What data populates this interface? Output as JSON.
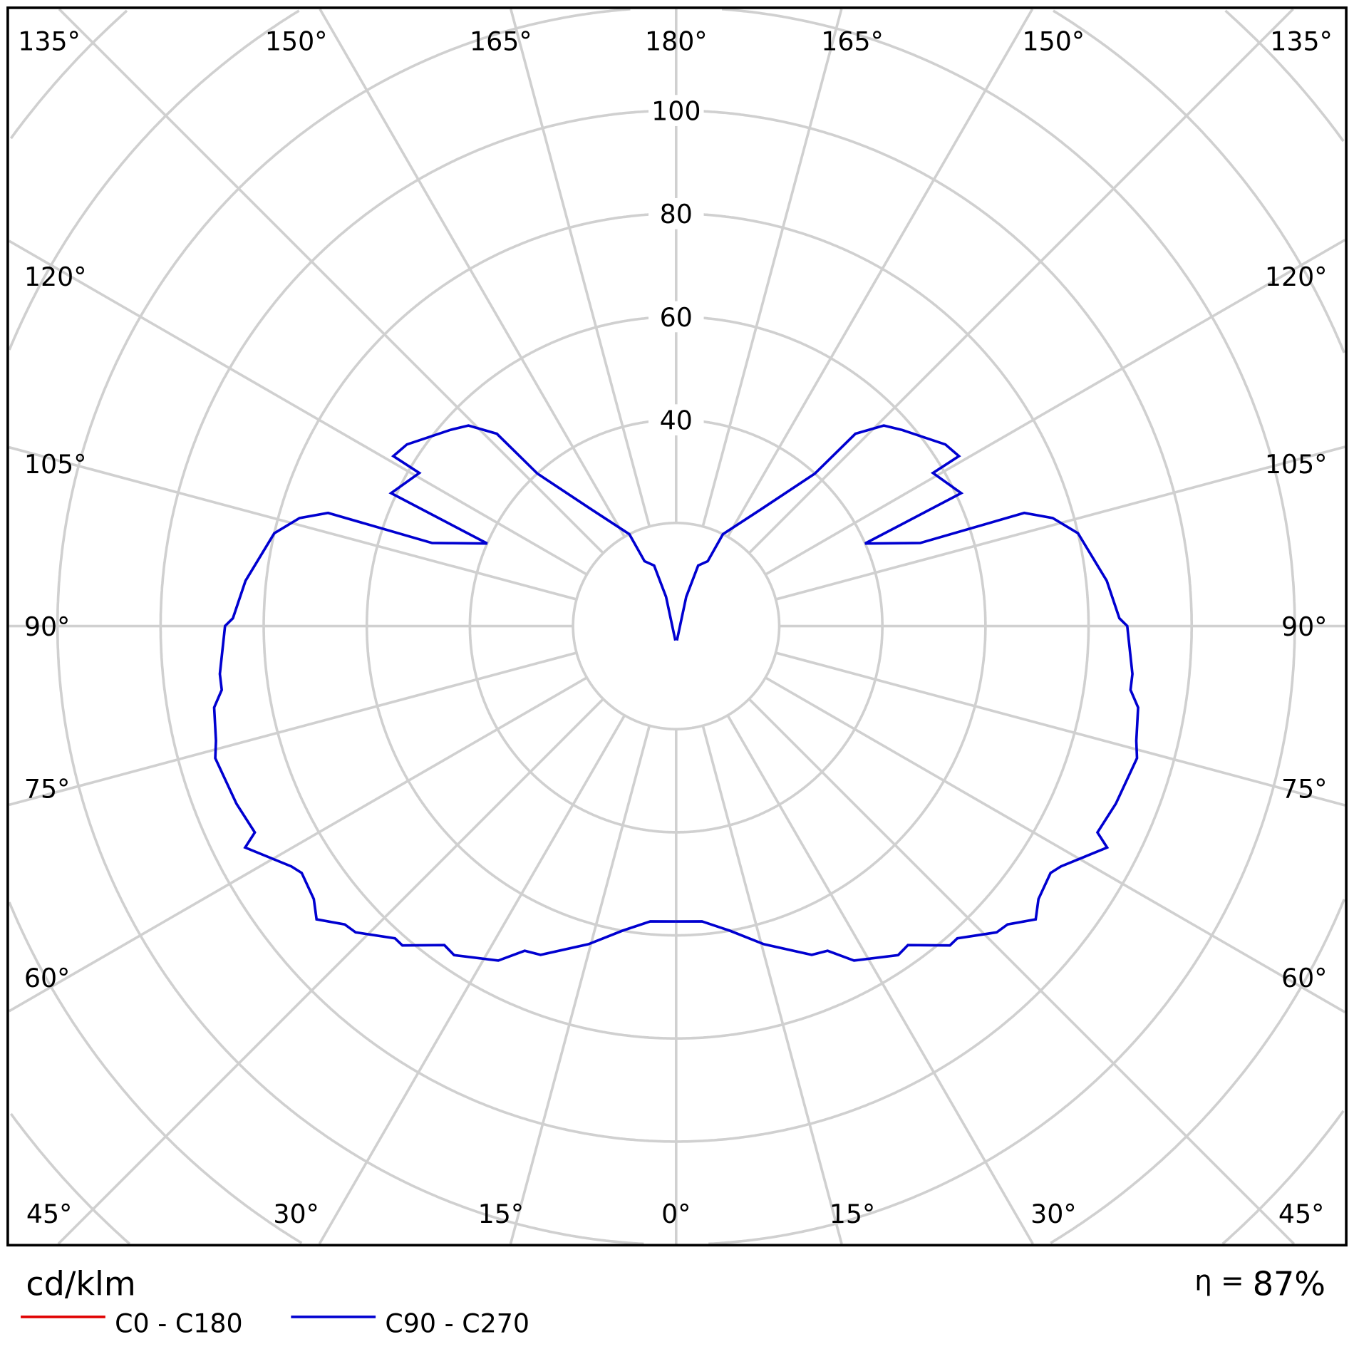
{
  "chart_data": {
    "type": "polar",
    "unit_label": "cd/klm",
    "efficiency_label": "η = 87%",
    "efficiency_symbol": "η =",
    "efficiency_value": "87%",
    "radial_ticks": [
      40,
      60,
      80,
      100
    ],
    "radial_tick_labels": [
      "40",
      "60",
      "80",
      "100"
    ],
    "grid_rings": [
      20,
      40,
      60,
      80,
      100,
      120,
      140,
      160
    ],
    "angle_step_deg": 15,
    "angle_labels_top": [
      "135°",
      "150°",
      "165°",
      "180°",
      "165°",
      "150°",
      "135°"
    ],
    "angle_labels_left": [
      "120°",
      "105°",
      "90°",
      "75°",
      "60°"
    ],
    "angle_labels_right": [
      "120°",
      "105°",
      "90°",
      "75°",
      "60°"
    ],
    "angle_labels_bottom": [
      "45°",
      "30°",
      "15°",
      "0°",
      "15°",
      "30°",
      "45°"
    ],
    "grid": true,
    "legend_position": "bottom-left",
    "series": [
      {
        "name": "C0 - C180",
        "color": "#e00000",
        "points": []
      },
      {
        "name": "C90 - C270",
        "color": "#0000d0",
        "symmetric": true,
        "points_gamma_value": [
          [
            0,
            57.3
          ],
          [
            5,
            57.5
          ],
          [
            10,
            60
          ],
          [
            15.4,
            64
          ],
          [
            22.4,
            69
          ],
          [
            25,
            69.5
          ],
          [
            28,
            73.5
          ],
          [
            34,
            77
          ],
          [
            36,
            76.5
          ],
          [
            40.6,
            81.6
          ],
          [
            42,
            81.5
          ],
          [
            46.3,
            86
          ],
          [
            48,
            86.5
          ],
          [
            50.8,
            90
          ],
          [
            53,
            88
          ],
          [
            56.6,
            87
          ],
          [
            58,
            88
          ],
          [
            62.8,
            94
          ],
          [
            63.9,
            91
          ],
          [
            68,
            92
          ],
          [
            74,
            93
          ],
          [
            76,
            92
          ],
          [
            80,
            91
          ],
          [
            82,
            89
          ],
          [
            84,
            89
          ],
          [
            90,
            87.5
          ],
          [
            91,
            86
          ],
          [
            96,
            84
          ],
          [
            103,
            80
          ],
          [
            106,
            76
          ],
          [
            108,
            71
          ],
          [
            108.8,
            50
          ],
          [
            110,
            47
          ],
          [
            113.6,
            40
          ],
          [
            115,
            61
          ],
          [
            120.8,
            58
          ],
          [
            121,
            64
          ],
          [
            124,
            63
          ],
          [
            131,
            58
          ],
          [
            134,
            56
          ],
          [
            137,
            51
          ],
          [
            137.7,
            40
          ],
          [
            144,
            28
          ],
          [
            153,
            20
          ],
          [
            154,
            14
          ],
          [
            160,
            12.5
          ],
          [
            161,
            6
          ],
          [
            3,
            2.8
          ]
        ]
      }
    ]
  }
}
